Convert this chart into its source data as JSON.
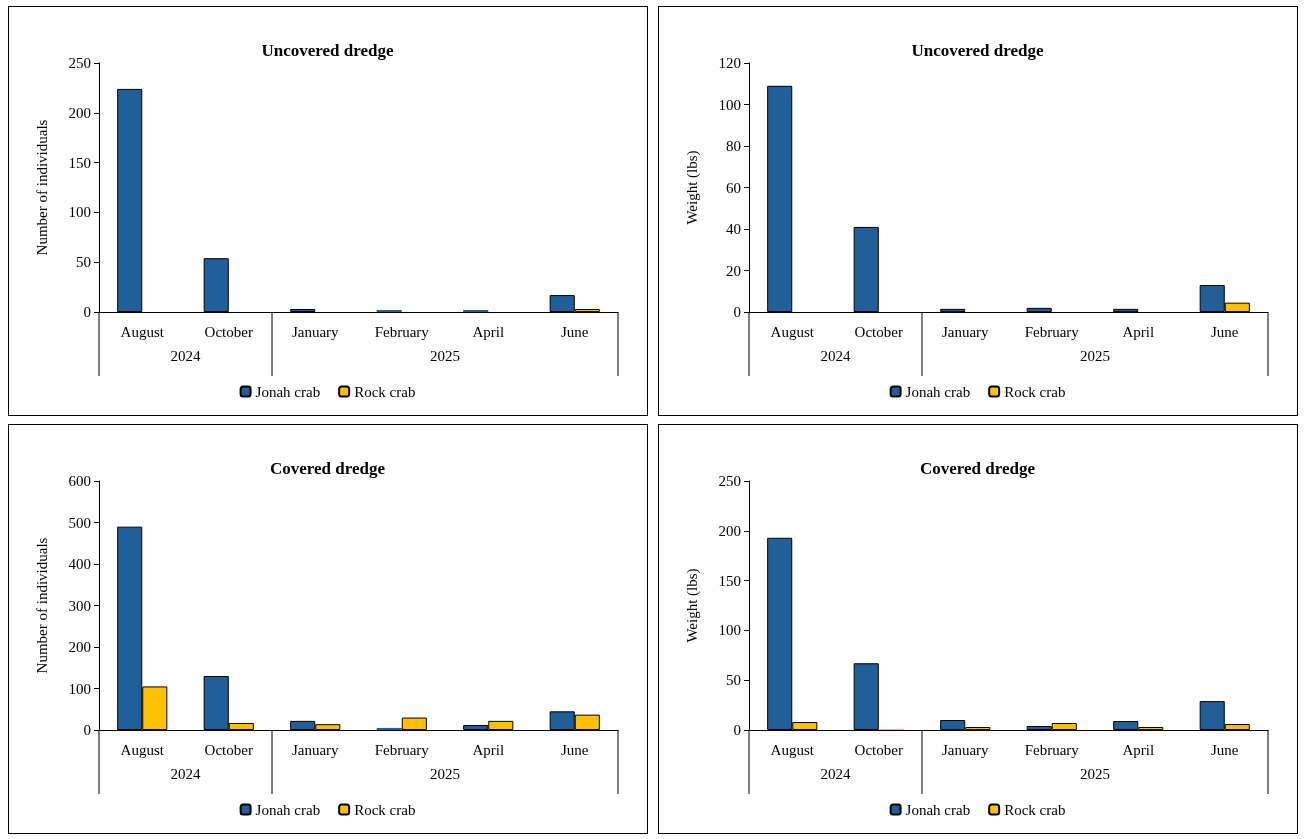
{
  "chart_data": [
    {
      "type": "bar",
      "title": "Uncovered dredge",
      "ylabel": "Number of individuals",
      "categories": [
        "August",
        "October",
        "January",
        "February",
        "April",
        "June"
      ],
      "series": [
        {
          "name": "Jonah crab",
          "color": "#215f9a",
          "values": [
            224,
            54,
            3,
            2,
            2,
            17
          ]
        },
        {
          "name": "Rock crab",
          "color": "#ffc000",
          "values": [
            0,
            0,
            0,
            0,
            0,
            3
          ]
        }
      ],
      "ylim": [
        0,
        250
      ],
      "yticks": [
        0,
        50,
        100,
        150,
        200,
        250
      ],
      "grid": false,
      "legend": "bottom",
      "annotations": [
        "2024",
        "2025"
      ]
    },
    {
      "type": "bar",
      "title": "Uncovered dredge",
      "ylabel": "Weight (lbs)",
      "categories": [
        "August",
        "October",
        "January",
        "February",
        "April",
        "June"
      ],
      "series": [
        {
          "name": "Jonah crab",
          "color": "#215f9a",
          "values": [
            109,
            41,
            1.5,
            2,
            1.5,
            13
          ]
        },
        {
          "name": "Rock crab",
          "color": "#ffc000",
          "values": [
            0,
            0,
            0,
            0,
            0,
            4.5
          ]
        }
      ],
      "ylim": [
        0,
        120
      ],
      "yticks": [
        0,
        20,
        40,
        60,
        80,
        100,
        120
      ],
      "grid": false,
      "legend": "bottom",
      "annotations": [
        "2024",
        "2025"
      ]
    },
    {
      "type": "bar",
      "title": "Covered dredge",
      "ylabel": "Number of individuals",
      "categories": [
        "August",
        "October",
        "January",
        "February",
        "April",
        "June"
      ],
      "series": [
        {
          "name": "Jonah crab",
          "color": "#215f9a",
          "values": [
            490,
            130,
            22,
            5,
            12,
            45
          ]
        },
        {
          "name": "Rock crab",
          "color": "#ffc000",
          "values": [
            105,
            17,
            14,
            30,
            22,
            37
          ]
        }
      ],
      "ylim": [
        0,
        600
      ],
      "yticks": [
        0,
        100,
        200,
        300,
        400,
        500,
        600
      ],
      "grid": false,
      "legend": "bottom",
      "annotations": [
        "2024",
        "2025"
      ]
    },
    {
      "type": "bar",
      "title": "Covered dredge",
      "ylabel": "Weight (lbs)",
      "categories": [
        "August",
        "October",
        "January",
        "February",
        "April",
        "June"
      ],
      "series": [
        {
          "name": "Jonah crab",
          "color": "#215f9a",
          "values": [
            193,
            67,
            10,
            4,
            9,
            29
          ]
        },
        {
          "name": "Rock crab",
          "color": "#ffc000",
          "values": [
            8,
            1,
            3,
            7,
            3,
            6
          ]
        }
      ],
      "ylim": [
        0,
        250
      ],
      "yticks": [
        0,
        50,
        100,
        150,
        200,
        250
      ],
      "grid": false,
      "legend": "bottom",
      "annotations": [
        "2024",
        "2025"
      ]
    }
  ]
}
